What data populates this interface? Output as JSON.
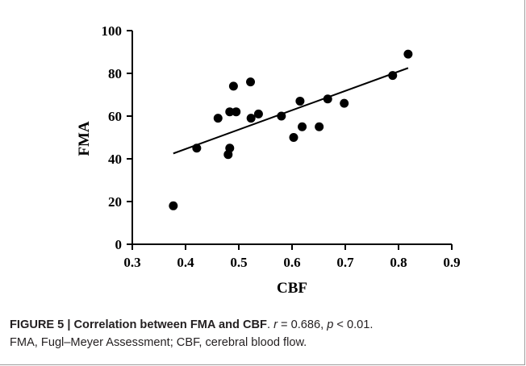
{
  "chart_data": {
    "type": "scatter",
    "xlabel": "CBF",
    "ylabel": "FMA",
    "xlim": [
      0.3,
      0.9
    ],
    "ylim": [
      0,
      100
    ],
    "xticks": [
      "0.3",
      "0.4",
      "0.5",
      "0.6",
      "0.7",
      "0.8",
      "0.9"
    ],
    "yticks": [
      "0",
      "20",
      "40",
      "60",
      "80",
      "100"
    ],
    "grid": false,
    "points": [
      {
        "x": 0.377,
        "y": 18
      },
      {
        "x": 0.421,
        "y": 45
      },
      {
        "x": 0.461,
        "y": 59
      },
      {
        "x": 0.48,
        "y": 42
      },
      {
        "x": 0.483,
        "y": 45
      },
      {
        "x": 0.483,
        "y": 62
      },
      {
        "x": 0.49,
        "y": 74
      },
      {
        "x": 0.495,
        "y": 62
      },
      {
        "x": 0.522,
        "y": 76
      },
      {
        "x": 0.523,
        "y": 59
      },
      {
        "x": 0.537,
        "y": 61
      },
      {
        "x": 0.58,
        "y": 60
      },
      {
        "x": 0.603,
        "y": 50
      },
      {
        "x": 0.615,
        "y": 67
      },
      {
        "x": 0.619,
        "y": 55
      },
      {
        "x": 0.651,
        "y": 55
      },
      {
        "x": 0.667,
        "y": 68
      },
      {
        "x": 0.698,
        "y": 66
      },
      {
        "x": 0.789,
        "y": 79
      },
      {
        "x": 0.818,
        "y": 89
      }
    ],
    "fit_line": {
      "x": [
        0.377,
        0.818
      ],
      "y": [
        42.5,
        82.5
      ]
    }
  },
  "caption": {
    "label": "FIGURE 5",
    "separator": " | ",
    "title": "Correlation between FMA and CBF",
    "stats_prefix": ". ",
    "r_symbol": "r",
    "r_value": " = 0.686, ",
    "p_symbol": "p",
    "p_value": " < 0.01.",
    "line2": "FMA, Fugl–Meyer Assessment; CBF, cerebral blood flow."
  }
}
